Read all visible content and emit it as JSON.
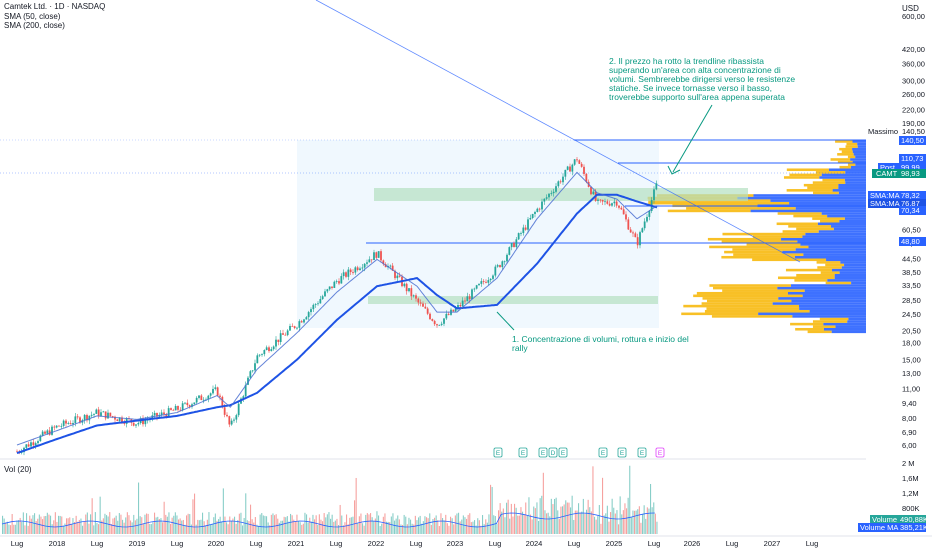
{
  "header": {
    "title": "Camtek Ltd. · 1D · NASDAQ",
    "indicator1": "SMA (50, close)",
    "indicator2": "SMA (200, close)",
    "currency": "USD"
  },
  "colors": {
    "price_line": "#2962ff",
    "sma": "#1e53e5",
    "up": "#26a69a",
    "down": "#ef5350",
    "annotation": "#089981",
    "vp_up": "#f7b500",
    "vp_down": "#2962ff",
    "zone_fill": "#b3e0c0"
  },
  "axis": {
    "price_ticks": [
      "600,00",
      "420,00",
      "360,00",
      "300,00",
      "260,00",
      "220,00",
      "190,00",
      "160,00",
      "110,73",
      "99,99",
      "98,93",
      "83,00",
      "78,32",
      "76,87",
      "70,34",
      "60,50",
      "52,50",
      "48,80",
      "44,50",
      "38,50",
      "33,50",
      "28,50",
      "24,50",
      "20,50",
      "18,00",
      "15,00",
      "13,00",
      "11,00",
      "9,40",
      "8,00",
      "6,90",
      "6,00"
    ],
    "time_ticks": [
      "Lug",
      "2018",
      "Lug",
      "2019",
      "Lug",
      "2020",
      "Lug",
      "2021",
      "Lug",
      "2022",
      "Lug",
      "2023",
      "Lug",
      "2024",
      "Lug",
      "2025",
      "Lug",
      "2026",
      "Lug",
      "2027",
      "Lug"
    ],
    "volume_ticks": [
      "2 M",
      "1,6M",
      "1,2M",
      "800K"
    ]
  },
  "price_labels": {
    "massimo_label": "Massimo",
    "massimo_value": "140,50",
    "high_line": "140,50",
    "level_110": "110,73",
    "post_label": "Post",
    "post_value": "99,99",
    "ticker": "CAMT",
    "ticker_value": "98,93",
    "sma1_label": "SMA:MA",
    "sma1_value": "78,32",
    "sma2_label": "SMA:MA",
    "sma2_value": "76,87",
    "level_70": "70,34",
    "level_48": "48,80"
  },
  "volume": {
    "title": "Vol (20)",
    "volume_label": "Volume",
    "volume_value": "490,88K",
    "volume_ma_label": "Volume MA",
    "volume_ma_value": "385,21K"
  },
  "annotations": {
    "note1_line1": "1. Concentrazione di volumi, rottura e inizio del",
    "note1_line2": "rally",
    "note2_line1": "2. Il prezzo ha rotto la trendline ribassista",
    "note2_line2": "superando un'area con alta concentrazione di",
    "note2_line3": "volumi. Sembrerebbe dirigersi verso le resistenze",
    "note2_line4": "statiche. Se invece tornasse verso il basso,",
    "note2_line5": "troverebbe supporto sull'area appena superata"
  },
  "earnings_markers": [
    "E",
    "E",
    "E",
    "D",
    "E",
    "E",
    "E",
    "E",
    "E",
    "E"
  ],
  "chart_data": {
    "type": "line",
    "title": "Camtek Ltd. · 1D · NASDAQ",
    "xlabel": "",
    "ylabel": "USD",
    "y_scale": "log",
    "ylim": [
      5.5,
      620
    ],
    "x": [
      "2017-07",
      "2018-01",
      "2018-07",
      "2019-01",
      "2019-07",
      "2020-01",
      "2020-03",
      "2020-07",
      "2021-01",
      "2021-07",
      "2022-01",
      "2022-07",
      "2022-10",
      "2023-01",
      "2023-07",
      "2024-01",
      "2024-07",
      "2024-10",
      "2025-01",
      "2025-04",
      "2025-07"
    ],
    "series": [
      {
        "name": "close",
        "values": [
          5.6,
          7.3,
          8.5,
          7.6,
          8.8,
          10.8,
          7.2,
          15.5,
          22.0,
          35.0,
          47.0,
          28.0,
          22.0,
          26.0,
          40.0,
          75.0,
          130.0,
          80.0,
          82.0,
          52.0,
          98.93
        ]
      },
      {
        "name": "SMA (50, close)",
        "values": [
          6.0,
          7.0,
          8.2,
          7.9,
          8.5,
          10.2,
          9.0,
          13.5,
          20.0,
          31.0,
          44.0,
          33.0,
          25.0,
          25.0,
          36.0,
          68.0,
          112.0,
          90.0,
          84.0,
          68.0,
          78.32
        ]
      },
      {
        "name": "SMA (200, close)",
        "values": [
          5.5,
          6.4,
          7.4,
          7.8,
          8.2,
          9.0,
          9.2,
          10.5,
          15.0,
          23.0,
          33.0,
          36.0,
          30.0,
          26.0,
          27.0,
          42.0,
          72.0,
          88.0,
          88.0,
          82.0,
          76.87
        ]
      }
    ],
    "horizontal_levels": [
      140.5,
      110.73,
      70.34,
      48.8
    ],
    "volume_zones": [
      [
        77,
        85
      ],
      [
        26.5,
        28.0
      ]
    ],
    "max_marker": 140.5
  }
}
